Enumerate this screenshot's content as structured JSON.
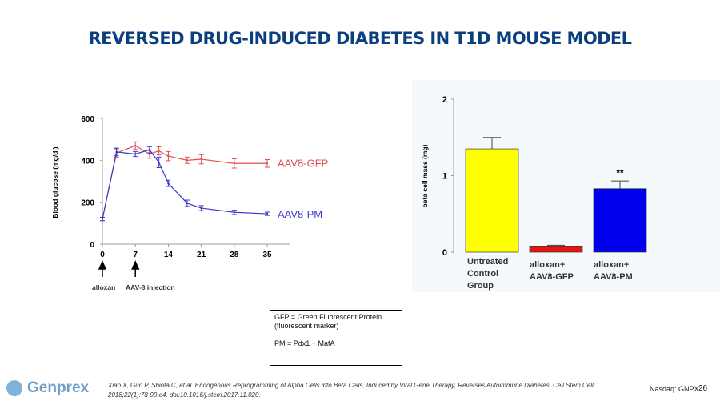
{
  "title": "REVERSED DRUG-INDUCED DIABETES IN T1D MOUSE MODEL",
  "chart_data": [
    {
      "type": "line",
      "xlabel": "",
      "ylabel": "Blood glucose (mg/dl)",
      "xticks": [
        "0",
        "7",
        "14",
        "21",
        "28",
        "35"
      ],
      "yticks": [
        "0",
        "200",
        "400",
        "600"
      ],
      "xlim": [
        0,
        47
      ],
      "ylim": [
        0,
        600
      ],
      "grid": false,
      "series": [
        {
          "name": "AAV8-GFP",
          "color": "#e05050",
          "x": [
            0,
            3,
            7,
            10,
            12,
            14,
            18,
            21,
            28,
            35
          ],
          "y": [
            120,
            435,
            470,
            430,
            445,
            420,
            400,
            405,
            385,
            385
          ],
          "err": [
            8,
            20,
            18,
            20,
            20,
            22,
            15,
            22,
            22,
            18
          ]
        },
        {
          "name": "AAV8-PM",
          "color": "#3a3acc",
          "x": [
            0,
            3,
            7,
            10,
            12,
            14,
            18,
            21,
            28,
            35
          ],
          "y": [
            120,
            440,
            430,
            450,
            390,
            290,
            195,
            172,
            152,
            145
          ],
          "err": [
            8,
            18,
            12,
            15,
            25,
            15,
            15,
            12,
            10,
            8
          ]
        }
      ],
      "annotations": [
        "alloxan",
        "AAV-8 injection"
      ]
    },
    {
      "type": "bar",
      "ylabel": "beta cell mass (mg)",
      "yticks": [
        "0",
        "1",
        "2"
      ],
      "ylim": [
        0,
        2
      ],
      "categories": [
        "Untreated Control Group",
        "alloxan+ AAV8-GFP",
        "alloxan+ AAV8-PM"
      ],
      "category_lines": [
        [
          "Untreated",
          "Control",
          "Group"
        ],
        [
          "alloxan+",
          "AAV8-GFP"
        ],
        [
          "alloxan+",
          "AAV8-PM"
        ]
      ],
      "values": [
        1.35,
        0.08,
        0.83
      ],
      "errors": [
        0.15,
        0.01,
        0.1
      ],
      "colors": [
        "#ffff00",
        "#ee1111",
        "#0000ee"
      ],
      "annotations": [
        "",
        "",
        "**"
      ]
    }
  ],
  "legend_box": {
    "line1": "GFP = Green Fluorescent Protein",
    "line2": "(fluorescent marker)",
    "line3": "PM = Pdx1 + MafA"
  },
  "footer": {
    "logo": "Genprex",
    "citation": "Xiao X, Guo P, Shiota C, et al. Endogenous Reprogramming of Alpha Cells into Beta Cells, Induced by Viral Gene Therapy, Reverses Autoimmune Diabetes. Cell Stem Cell. 2018;22(1):78-90.e4. doi:10.1016/j.stem.2017.11.020.",
    "ticker": "Nasdaq: GNPX",
    "page": "26"
  }
}
